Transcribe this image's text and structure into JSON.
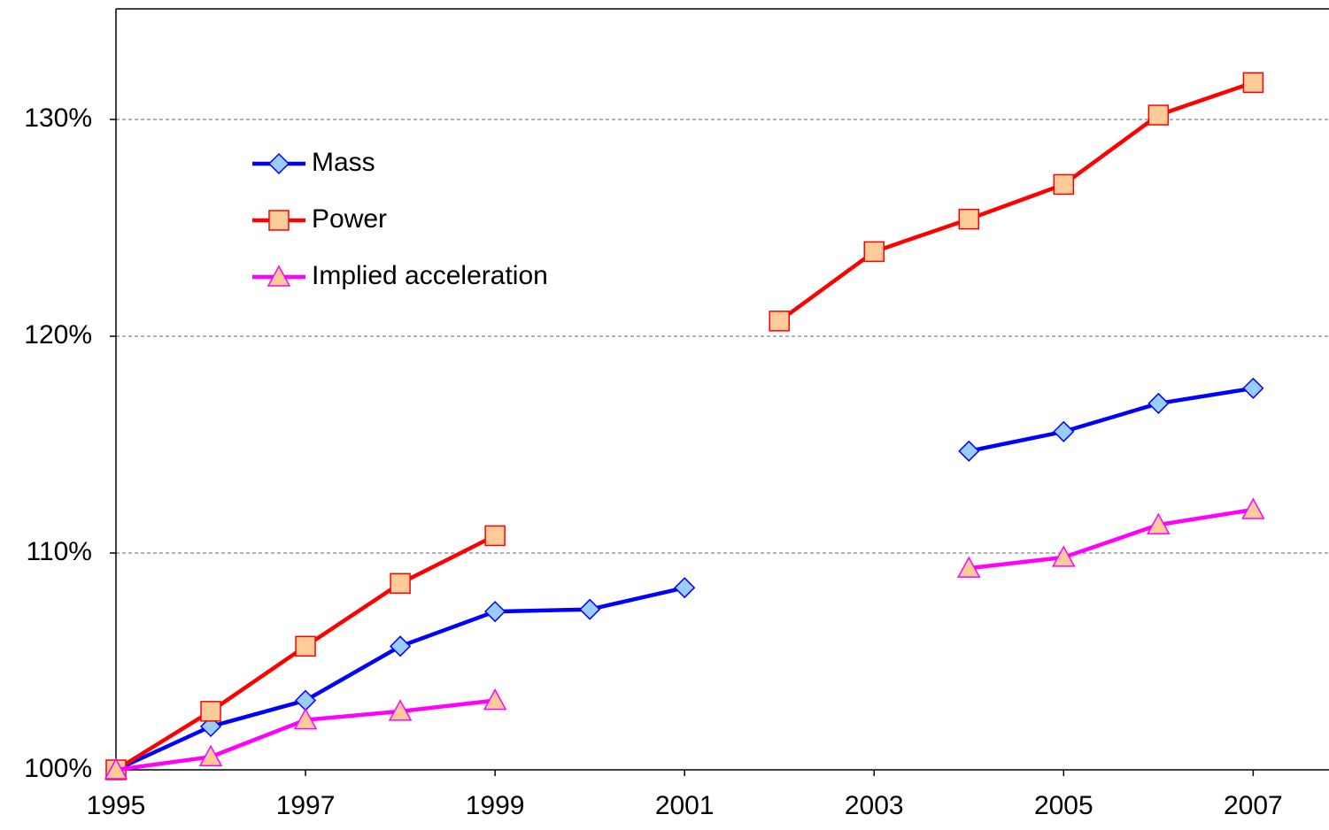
{
  "chart_data": {
    "type": "line",
    "x": [
      1995,
      1996,
      1997,
      1998,
      1999,
      2000,
      2001,
      2002,
      2003,
      2004,
      2005,
      2006,
      2007
    ],
    "series": [
      {
        "name": "Mass",
        "color": "#0000ff",
        "marker": "diamond",
        "marker_color": "#99ccff",
        "values": [
          100,
          102.0,
          103.2,
          105.7,
          107.3,
          107.4,
          108.4,
          null,
          null,
          114.7,
          115.6,
          116.9,
          117.6
        ]
      },
      {
        "name": "Power",
        "color": "#ff0000",
        "marker": "square",
        "marker_color": "#ffcc99",
        "values": [
          100,
          102.7,
          105.7,
          108.6,
          110.8,
          null,
          null,
          120.7,
          123.9,
          125.4,
          127.0,
          130.2,
          131.7
        ]
      },
      {
        "name": "Implied acceleration",
        "color": "#ff00ff",
        "marker": "triangle",
        "marker_color": "#ffcc99",
        "values": [
          100,
          100.6,
          102.3,
          102.7,
          103.2,
          null,
          null,
          null,
          null,
          109.3,
          109.8,
          111.3,
          112.0
        ]
      }
    ],
    "xlim": [
      1995,
      2007.8
    ],
    "xticks": [
      1995,
      1997,
      1999,
      2001,
      2003,
      2005,
      2007
    ],
    "ylim": [
      100,
      135.1
    ],
    "yticks": [
      {
        "value": 100,
        "label": "100%"
      },
      {
        "value": 110,
        "label": "110%"
      },
      {
        "value": 120,
        "label": "120%"
      },
      {
        "value": 130,
        "label": "130%"
      }
    ],
    "grid": true,
    "legend": "upper left"
  }
}
